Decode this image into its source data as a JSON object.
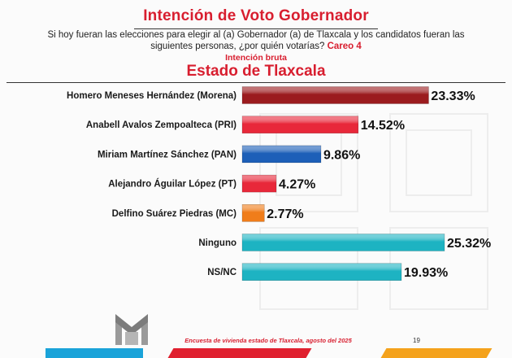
{
  "header": {
    "title": "Intención de Voto Gobernador",
    "question": "Si hoy fueran las elecciones para elegir al (a) Gobernador (a) de Tlaxcala y los candidatos fueran las siguientes personas, ¿por quién votarías?",
    "careo": "Careo 4",
    "subtitle": "Intención bruta",
    "chart_title": "Estado de Tlaxcala"
  },
  "footer": {
    "source": "Encuesta de vivienda estado de Tlaxcala, agosto del 2025",
    "page": "19"
  },
  "chart_data": {
    "type": "bar",
    "orientation": "horizontal",
    "title": "Estado de Tlaxcala",
    "categories": [
      "Homero Meneses Hernández (Morena)",
      "Anabell Avalos Zempoalteca (PRI)",
      "Miriam Martínez Sánchez (PAN)",
      "Alejandro Águilar López (PT)",
      "Delfino Suárez Piedras (MC)",
      "Ninguno",
      "NS/NC"
    ],
    "values": [
      23.33,
      14.52,
      9.86,
      4.27,
      2.77,
      25.32,
      19.93
    ],
    "labels": [
      "23.33%",
      "14.52%",
      "9.86%",
      "4.27%",
      "2.77%",
      "25.32%",
      "19.93%"
    ],
    "colors": [
      "#9b1b1e",
      "#e8283a",
      "#1d5fb8",
      "#e8283a",
      "#f07d1a",
      "#1db3c2",
      "#1db3c2"
    ],
    "xlim": [
      0,
      25.32
    ],
    "grid": false
  }
}
